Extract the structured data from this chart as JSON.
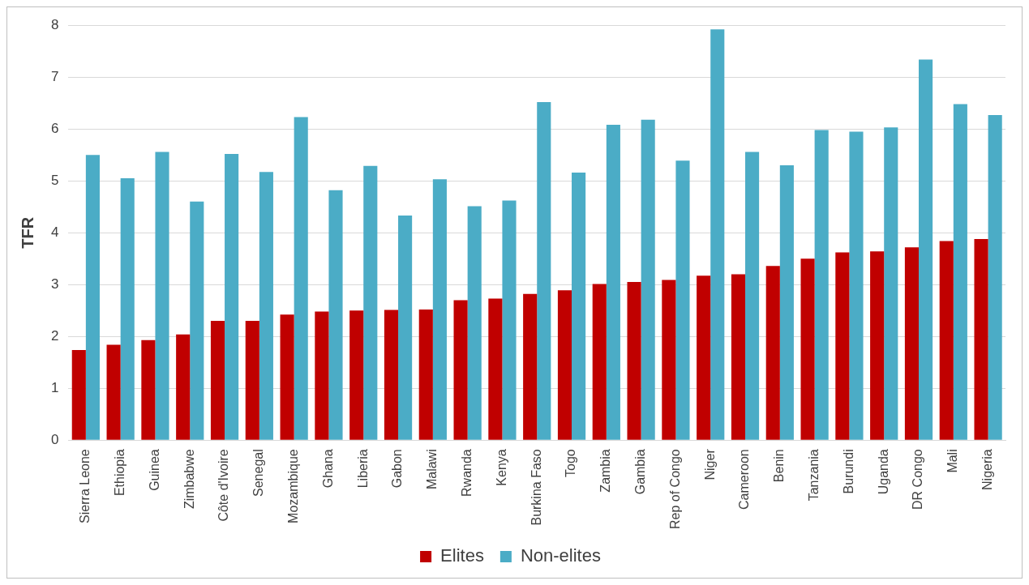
{
  "chart_data": {
    "type": "bar",
    "ylabel": "TFR",
    "categories": [
      "Sierra Leone",
      "Ethiopia",
      "Guinea",
      "Zimbabwe",
      "Côte d'Ivoire",
      "Senegal",
      "Mozambique",
      "Ghana",
      "Liberia",
      "Gabon",
      "Malawi",
      "Rwanda",
      "Kenya",
      "Burkina Faso",
      "Togo",
      "Zambia",
      "Gambia",
      "Rep of Congo",
      "Niger",
      "Cameroon",
      "Benin",
      "Tanzania",
      "Burundi",
      "Uganda",
      "DR Congo",
      "Mali",
      "Nigeria"
    ],
    "series": [
      {
        "name": "Elites",
        "color": "#c00000",
        "values": [
          1.74,
          1.84,
          1.93,
          2.04,
          2.3,
          2.3,
          2.42,
          2.48,
          2.5,
          2.51,
          2.52,
          2.7,
          2.73,
          2.82,
          2.89,
          3.01,
          3.05,
          3.09,
          3.17,
          3.2,
          3.36,
          3.5,
          3.62,
          3.64,
          3.72,
          3.84,
          3.88
        ]
      },
      {
        "name": "Non-elites",
        "color": "#4bacc6",
        "values": [
          5.5,
          5.05,
          5.56,
          4.6,
          5.52,
          5.17,
          6.23,
          4.82,
          5.29,
          4.33,
          5.03,
          4.51,
          4.62,
          6.52,
          5.16,
          6.08,
          6.18,
          5.39,
          7.92,
          5.56,
          5.3,
          5.98,
          5.95,
          6.03,
          7.34,
          6.48,
          6.27
        ]
      }
    ],
    "ylim": [
      0,
      8
    ],
    "yticks": [
      0,
      1,
      2,
      3,
      4,
      5,
      6,
      7,
      8
    ],
    "grid": "y",
    "legend": "bottom"
  }
}
